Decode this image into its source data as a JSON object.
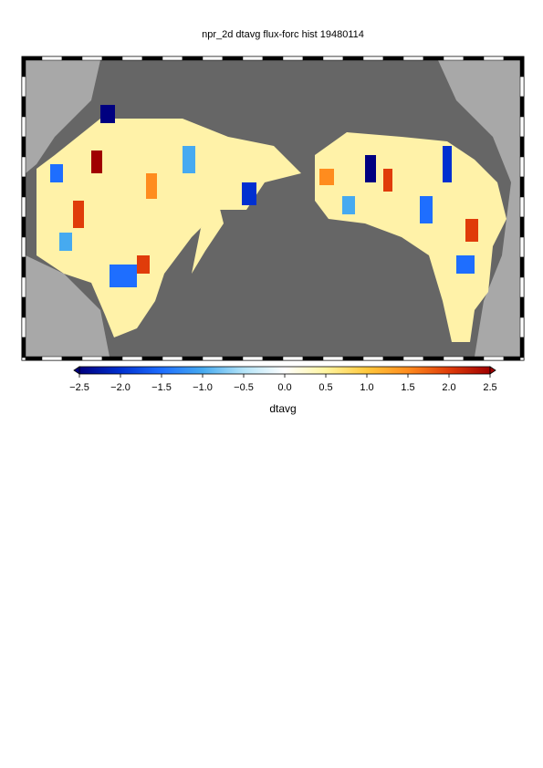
{
  "title": "npr_2d dtavg flux-forc hist 19480114",
  "colorbar": {
    "label": "dtavg",
    "range": [
      -2.5,
      2.5
    ],
    "ticks": [
      {
        "value": -2.5,
        "label": "−2.5"
      },
      {
        "value": -2.0,
        "label": "−2.0"
      },
      {
        "value": -1.5,
        "label": "−1.5"
      },
      {
        "value": -1.0,
        "label": "−1.0"
      },
      {
        "value": -0.5,
        "label": "−0.5"
      },
      {
        "value": 0,
        "label": "0.0"
      },
      0.5,
      {
        "value": 1.0,
        "label": "1.0"
      },
      1.5,
      {
        "value": 2.0,
        "label": "2.0"
      },
      2.5
    ],
    "colors": [
      "#000080",
      "#0030d0",
      "#1e6eff",
      "#46aaf0",
      "#b4e4f8",
      "#ffffff",
      "#fff5a0",
      "#ffc83c",
      "#ff8c1e",
      "#e03c0a",
      "#a00000"
    ]
  }
}
